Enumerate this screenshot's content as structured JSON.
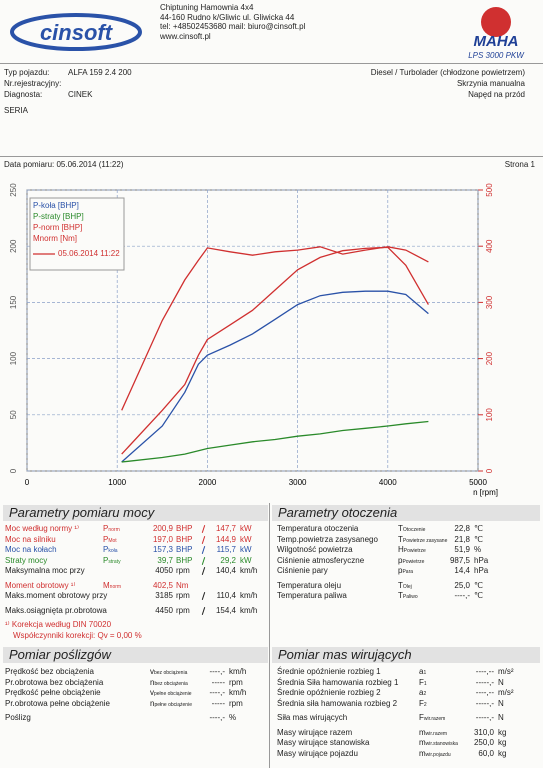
{
  "header": {
    "logo": "cinsoft",
    "company": "Chiptuning Hamownia 4x4",
    "address": "44-160 Rudno k/Gliwic ul. Gliwicka 44",
    "contact": "tel: +48502453680 mail: biuro@cinsoft.pl",
    "web": "www.cinsoft.pl",
    "badge": "MAHA",
    "device": "LPS 3000 PKW"
  },
  "vehicle": {
    "type_label": "Typ pojazdu:",
    "type_value": "ALFA 159 2.4 200",
    "reg_label": "Nr.rejestracyjny:",
    "diag_label": "Diagnosta:",
    "diag_value": "CINEK",
    "engine": "Diesel / Turbolader (chłodzone powietrzem)",
    "gearbox": "Skrzynia manualna",
    "drive": "Napęd na przód",
    "series": "SERIA"
  },
  "measurement": {
    "date": "Data pomiaru: 05.06.2014 (11:22)",
    "page": "Strona 1"
  },
  "chart_data": {
    "type": "line",
    "x_label": "n [rpm]",
    "legend_date": "05.06.2014 11:22",
    "legend_date_color": "#d03030",
    "x": [
      1050,
      1500,
      1750,
      1900,
      2000,
      2250,
      2500,
      2750,
      3000,
      3250,
      3500,
      3750,
      4000,
      4200,
      4450
    ],
    "series": [
      {
        "name": "P-koła [BHP]",
        "color": "#2a52a8",
        "values": [
          8,
          40,
          70,
          95,
          103,
          112,
          122,
          135,
          148,
          156,
          159,
          160,
          160,
          157,
          140
        ]
      },
      {
        "name": "P-straty [BHP]",
        "color": "#2a8a2a",
        "values": [
          8,
          12,
          15,
          18,
          20,
          23,
          26,
          28,
          31,
          33,
          36,
          38,
          40,
          42,
          44
        ]
      },
      {
        "name": "P-norm [BHP]",
        "color": "#d03030",
        "values": [
          15,
          54,
          77,
          103,
          117,
          130,
          143,
          161,
          179,
          190,
          196,
          198,
          199,
          183,
          148
        ]
      },
      {
        "name": "Mnorm [Nm]",
        "color": "#d03030",
        "axis": "y2",
        "values": [
          108,
          268,
          340,
          375,
          397,
          390,
          384,
          390,
          393,
          399,
          386,
          393,
          399,
          393,
          372
        ]
      }
    ],
    "xlim": [
      0,
      5000
    ],
    "xticks": [
      0,
      1000,
      2000,
      3000,
      4000,
      5000
    ],
    "ylim": [
      0,
      250
    ],
    "yticks": [
      0,
      50,
      100,
      150,
      200,
      250
    ],
    "y2lim": [
      0,
      500
    ],
    "y2ticks": [
      0,
      100,
      200,
      300,
      400,
      500
    ],
    "y2_color": "#d03030",
    "grid": true
  },
  "power": {
    "title": "Parametry pomiaru mocy",
    "groups": [
      [
        {
          "label": "Moc według normy ¹⁾",
          "sym": {
            "main": "P",
            "sub": "norm"
          },
          "value": "200,9",
          "unit": "BHP",
          "value2": "147,7",
          "unit2": "kW",
          "color": "#d03030"
        },
        {
          "label": "Moc na silniku",
          "sym": {
            "main": "P",
            "sub": "Mot"
          },
          "value": "197,0",
          "unit": "BHP",
          "value2": "144,9",
          "unit2": "kW",
          "color": "#d03030"
        },
        {
          "label": "Moc na kołach",
          "sym": {
            "main": "P",
            "sub": "koła"
          },
          "value": "157,3",
          "unit": "BHP",
          "value2": "115,7",
          "unit2": "kW",
          "color": "#2a52a8"
        },
        {
          "label": "Straty mocy",
          "sym": {
            "main": "P",
            "sub": "straty"
          },
          "value": "39,7",
          "unit": "BHP",
          "value2": "29,2",
          "unit2": "kW",
          "color": "#2a8a2a"
        },
        {
          "label": "Maksymalna moc przy",
          "value": "4050",
          "unit": "rpm",
          "value2": "140,4",
          "unit2": "km/h"
        }
      ],
      [
        {
          "label": "Moment obrotowy ¹⁾",
          "sym": {
            "main": "M",
            "sub": "norm"
          },
          "value": "402,5",
          "unit": "Nm",
          "color": "#d03030"
        },
        {
          "label": "Maks.moment obrotowy przy",
          "value": "3185",
          "unit": "rpm",
          "value2": "110,4",
          "unit2": "km/h"
        }
      ],
      [
        {
          "label": "Maks.osiągnięta pr.obrotowa",
          "value": "4450",
          "unit": "rpm",
          "value2": "154,4",
          "unit2": "km/h"
        }
      ]
    ],
    "note": [
      "¹⁾ Korekcja według DIN 70020",
      "Współczynniki korekcji: Qv = 0,00 %"
    ]
  },
  "environment": {
    "title": "Parametry otoczenia",
    "groups": [
      [
        {
          "label": "Temperatura otoczenia",
          "sym": {
            "main": "T",
            "sub": "Otoczenie"
          },
          "value": "22,8",
          "unit": "℃"
        },
        {
          "label": "Temp.powietrza zasysanego",
          "sym": {
            "main": "T",
            "sub": "Powietrze zasysane"
          },
          "value": "21,8",
          "unit": "℃"
        },
        {
          "label": "Wilgotność powietrza",
          "sym": {
            "main": "H",
            "sub": "Powietrze"
          },
          "value": "51,9",
          "unit": "%"
        },
        {
          "label": "Ciśnienie atmosferyczne",
          "sym": {
            "main": "p",
            "sub": "Powietrze"
          },
          "value": "987,5",
          "unit": "hPa"
        },
        {
          "label": "Ciśnienie pary",
          "sym": {
            "main": "p",
            "sub": "Para"
          },
          "value": "14,4",
          "unit": "hPa"
        }
      ],
      [
        {
          "label": "Temperatura oleju",
          "sym": {
            "main": "T",
            "sub": "Olej"
          },
          "value": "25,0",
          "unit": "℃"
        },
        {
          "label": "Temperatura paliwa",
          "sym": {
            "main": "T",
            "sub": "Paliwo"
          },
          "value": "----,-",
          "unit": "℃"
        }
      ]
    ]
  },
  "slip": {
    "title": "Pomiar poślizgów",
    "groups": [
      [
        {
          "label": "Prędkość bez obciążenia",
          "sym": {
            "main": "v",
            "sub": "bez obciążenia"
          },
          "value": "----,-",
          "unit": "km/h"
        },
        {
          "label": "Pr.obrotowa bez obciążenia",
          "sym": {
            "main": "n",
            "sub": "bez obciążenia"
          },
          "value": "-----",
          "unit": "rpm"
        },
        {
          "label": "Prędkość pełne obciążenie",
          "sym": {
            "main": "v",
            "sub": "pełne obciążenie"
          },
          "value": "----,-",
          "unit": "km/h"
        },
        {
          "label": "Pr.obrotowa pełne obciążenie",
          "sym": {
            "main": "n",
            "sub": "pełne obciążenie"
          },
          "value": "-----",
          "unit": "rpm"
        }
      ],
      [
        {
          "label": "Poślizg",
          "value": "----,-",
          "unit": "%"
        }
      ]
    ]
  },
  "masses": {
    "title": "Pomiar mas wirujących",
    "groups": [
      [
        {
          "label": "Średnie opóźnienie rozbieg 1",
          "sym": {
            "main": "a",
            "sub": "1"
          },
          "value": "----,--",
          "unit": "m/s²"
        },
        {
          "label": "Średnia Siła hamowania rozbieg 1",
          "sym": {
            "main": "F",
            "sub": "1"
          },
          "value": "-----,-",
          "unit": "N"
        },
        {
          "label": "Średnie opóźnienie rozbieg 2",
          "sym": {
            "main": "a",
            "sub": "2"
          },
          "value": "----,--",
          "unit": "m/s²"
        },
        {
          "label": "Średnia siła hamowania rozbieg 2",
          "sym": {
            "main": "F",
            "sub": "2"
          },
          "value": "-----,-",
          "unit": "N"
        }
      ],
      [
        {
          "label": "Siła mas wirujących",
          "sym": {
            "main": "F",
            "sub": "wir.razem"
          },
          "value": "-----,-",
          "unit": "N"
        }
      ],
      [
        {
          "label": "Masy wirujące razem",
          "sym": {
            "main": "m",
            "sub": "wir.razem"
          },
          "value": "310,0",
          "unit": "kg"
        },
        {
          "label": "Masy wirujące stanowiska",
          "sym": {
            "main": "m",
            "sub": "wir.stanowiska"
          },
          "value": "250,0",
          "unit": "kg"
        },
        {
          "label": "Masy wirujące pojazdu",
          "sym": {
            "main": "m",
            "sub": "wir.pojazdu"
          },
          "value": "60,0",
          "unit": "kg"
        }
      ]
    ]
  }
}
